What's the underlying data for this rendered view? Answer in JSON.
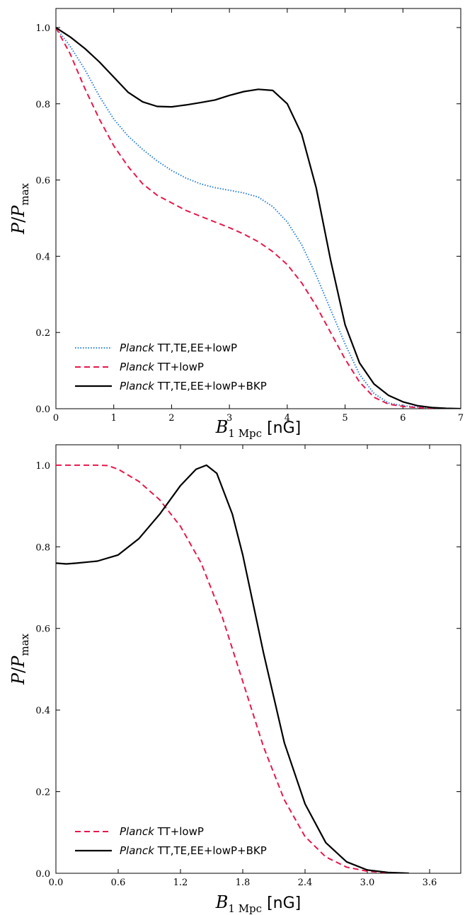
{
  "chart_data": [
    {
      "type": "line",
      "xlabel": "B1 Mpc [nG]",
      "xlabel_parts": {
        "var": "B",
        "sub": "1 Mpc",
        "unit": "[nG]"
      },
      "ylabel": "P/Pmax",
      "ylabel_parts": {
        "num": "P",
        "den": "P",
        "den_sub": "max"
      },
      "xlim": [
        0,
        7
      ],
      "ylim": [
        0,
        1.05
      ],
      "xticks": [
        "0",
        "1",
        "2",
        "3",
        "4",
        "5",
        "6",
        "7"
      ],
      "yticks": [
        "0.0",
        "0.2",
        "0.4",
        "0.6",
        "0.8",
        "1.0"
      ],
      "grid": false,
      "legend_position": "lower-left",
      "series": [
        {
          "name": "Planck TT,TE,EE+lowP",
          "name_italic": "Planck",
          "name_rest": "TT,TE,EE+lowP",
          "style": "dotted",
          "color": "#2a7fd4",
          "x": [
            0,
            0.25,
            0.5,
            0.75,
            1.0,
            1.25,
            1.5,
            1.75,
            2.0,
            2.25,
            2.5,
            2.75,
            3.0,
            3.25,
            3.5,
            3.75,
            4.0,
            4.25,
            4.5,
            4.75,
            5.0,
            5.25,
            5.5,
            5.75,
            6.0,
            6.25,
            6.5,
            6.75
          ],
          "y": [
            1.0,
            0.95,
            0.89,
            0.82,
            0.76,
            0.715,
            0.68,
            0.65,
            0.625,
            0.605,
            0.59,
            0.58,
            0.573,
            0.566,
            0.555,
            0.53,
            0.49,
            0.43,
            0.35,
            0.26,
            0.17,
            0.09,
            0.04,
            0.015,
            0.008,
            0.004,
            0.001,
            0.0
          ]
        },
        {
          "name": "Planck TT+lowP",
          "name_italic": "Planck",
          "name_rest": "TT+lowP",
          "style": "dashed",
          "color": "#e8174a",
          "x": [
            0,
            0.25,
            0.5,
            0.75,
            1.0,
            1.25,
            1.5,
            1.75,
            2.0,
            2.25,
            2.5,
            2.75,
            3.0,
            3.25,
            3.5,
            3.75,
            4.0,
            4.25,
            4.5,
            4.75,
            5.0,
            5.25,
            5.5,
            5.75,
            6.0,
            6.25,
            6.5,
            6.75
          ],
          "y": [
            1.0,
            0.93,
            0.84,
            0.76,
            0.69,
            0.635,
            0.59,
            0.56,
            0.54,
            0.52,
            0.505,
            0.49,
            0.475,
            0.458,
            0.438,
            0.412,
            0.378,
            0.33,
            0.27,
            0.2,
            0.13,
            0.07,
            0.03,
            0.012,
            0.006,
            0.003,
            0.001,
            0.0
          ]
        },
        {
          "name": "Planck TT,TE,EE+lowP+BKP",
          "name_italic": "Planck",
          "name_rest": "TT,TE,EE+lowP+BKP",
          "style": "solid",
          "color": "#000000",
          "x": [
            0,
            0.25,
            0.5,
            0.75,
            1.0,
            1.25,
            1.5,
            1.75,
            2.0,
            2.25,
            2.5,
            2.75,
            3.0,
            3.25,
            3.5,
            3.75,
            4.0,
            4.25,
            4.5,
            4.75,
            5.0,
            5.25,
            5.5,
            5.75,
            6.0,
            6.25,
            6.5,
            6.75,
            7.0
          ],
          "y": [
            1.0,
            0.975,
            0.945,
            0.91,
            0.87,
            0.83,
            0.805,
            0.793,
            0.792,
            0.797,
            0.803,
            0.81,
            0.822,
            0.832,
            0.838,
            0.835,
            0.8,
            0.72,
            0.58,
            0.39,
            0.22,
            0.12,
            0.065,
            0.035,
            0.018,
            0.008,
            0.003,
            0.001,
            0.0
          ]
        }
      ]
    },
    {
      "type": "line",
      "xlabel": "B1 Mpc [nG]",
      "xlabel_parts": {
        "var": "B",
        "sub": "1 Mpc",
        "unit": "[nG]"
      },
      "ylabel": "P/Pmax",
      "ylabel_parts": {
        "num": "P",
        "den": "P",
        "den_sub": "max"
      },
      "xlim": [
        0,
        3.9
      ],
      "ylim": [
        0,
        1.05
      ],
      "xticks": [
        "0.0",
        "0.6",
        "1.2",
        "1.8",
        "2.4",
        "3.0",
        "3.6"
      ],
      "yticks": [
        "0.0",
        "0.2",
        "0.4",
        "0.6",
        "0.8",
        "1.0"
      ],
      "grid": false,
      "legend_position": "lower-left",
      "series": [
        {
          "name": "Planck TT+lowP",
          "name_italic": "Planck",
          "name_rest": "TT+lowP",
          "style": "dashed",
          "color": "#e8174a",
          "x": [
            0,
            0.2,
            0.4,
            0.5,
            0.6,
            0.8,
            1.0,
            1.2,
            1.4,
            1.6,
            1.8,
            2.0,
            2.2,
            2.4,
            2.6,
            2.8,
            3.0,
            3.2,
            3.4
          ],
          "y": [
            1.0,
            1.0,
            1.0,
            0.999,
            0.99,
            0.96,
            0.915,
            0.85,
            0.76,
            0.63,
            0.47,
            0.31,
            0.18,
            0.09,
            0.04,
            0.015,
            0.005,
            0.001,
            0.0
          ]
        },
        {
          "name": "Planck TT,TE,EE+lowP+BKP",
          "name_italic": "Planck",
          "name_rest": "TT,TE,EE+lowP+BKP",
          "style": "solid",
          "color": "#000000",
          "x": [
            0,
            0.1,
            0.2,
            0.4,
            0.6,
            0.8,
            1.0,
            1.2,
            1.35,
            1.45,
            1.55,
            1.7,
            1.8,
            1.9,
            2.0,
            2.2,
            2.4,
            2.6,
            2.8,
            3.0,
            3.2,
            3.4
          ],
          "y": [
            0.76,
            0.758,
            0.76,
            0.765,
            0.78,
            0.82,
            0.88,
            0.95,
            0.99,
            1.0,
            0.98,
            0.88,
            0.78,
            0.66,
            0.54,
            0.32,
            0.17,
            0.075,
            0.028,
            0.008,
            0.002,
            0.0
          ]
        }
      ]
    }
  ]
}
